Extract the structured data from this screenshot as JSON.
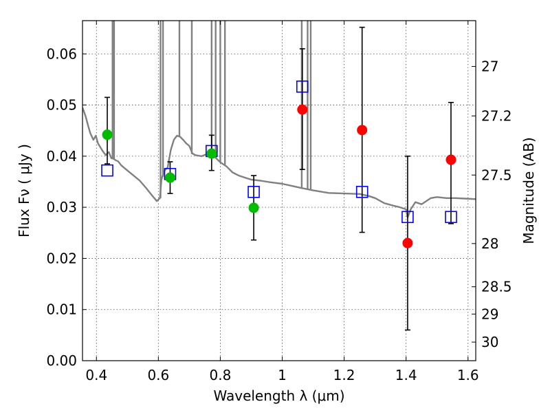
{
  "chart_data": {
    "type": "scatter",
    "xlabel": "Wavelength  λ (μm)",
    "ylabel": "Flux  Fν  ( μJy )",
    "y2label": "Magnitude (AB)",
    "xlim": [
      0.355,
      1.625
    ],
    "ylim": [
      0.0,
      0.0665
    ],
    "xticks": [
      0.4,
      0.6,
      0.8,
      1.0,
      1.2,
      1.4,
      1.6
    ],
    "xtick_labels": [
      "0.4",
      "0.6",
      "0.8",
      "1",
      "1.2",
      "1.4",
      "1.6"
    ],
    "yticks": [
      0.0,
      0.01,
      0.02,
      0.03,
      0.04,
      0.05,
      0.06
    ],
    "ytick_labels": [
      "0.00",
      "0.01",
      "0.02",
      "0.03",
      "0.04",
      "0.05",
      "0.06"
    ],
    "y2ticks": [
      {
        "label": "27",
        "mag": 27.0
      },
      {
        "label": "27.2",
        "mag": 27.2
      },
      {
        "label": "27.5",
        "mag": 27.5
      },
      {
        "label": "28",
        "mag": 28.0
      },
      {
        "label": "28.5",
        "mag": 28.5
      },
      {
        "label": "29",
        "mag": 29.0
      },
      {
        "label": "30",
        "mag": 30.0
      }
    ],
    "grid": true,
    "colors": {
      "spectrum": "#808080",
      "model_square": "#0000ff",
      "observed_green": "#00bb00",
      "observed_red": "#ff0000",
      "errorbar": "#000000"
    },
    "spectrum": [
      [
        0.355,
        0.0495
      ],
      [
        0.365,
        0.0478
      ],
      [
        0.372,
        0.0462
      ],
      [
        0.38,
        0.0445
      ],
      [
        0.39,
        0.0432
      ],
      [
        0.398,
        0.044
      ],
      [
        0.405,
        0.0425
      ],
      [
        0.412,
        0.0418
      ],
      [
        0.42,
        0.041
      ],
      [
        0.43,
        0.0402
      ],
      [
        0.44,
        0.0408
      ],
      [
        0.448,
        0.0396
      ],
      [
        0.455,
        0.0395
      ],
      [
        0.462,
        0.0392
      ],
      [
        0.47,
        0.039
      ],
      [
        0.48,
        0.0382
      ],
      [
        0.5,
        0.0372
      ],
      [
        0.52,
        0.0362
      ],
      [
        0.54,
        0.0352
      ],
      [
        0.56,
        0.0338
      ],
      [
        0.58,
        0.0323
      ],
      [
        0.595,
        0.0312
      ],
      [
        0.605,
        0.0318
      ],
      [
        0.61,
        0.0355
      ],
      [
        0.62,
        0.0372
      ],
      [
        0.63,
        0.0378
      ],
      [
        0.64,
        0.0412
      ],
      [
        0.65,
        0.0432
      ],
      [
        0.66,
        0.044
      ],
      [
        0.67,
        0.0438
      ],
      [
        0.68,
        0.0432
      ],
      [
        0.69,
        0.0425
      ],
      [
        0.7,
        0.042
      ],
      [
        0.71,
        0.0405
      ],
      [
        0.72,
        0.0402
      ],
      [
        0.74,
        0.04
      ],
      [
        0.76,
        0.0405
      ],
      [
        0.78,
        0.04
      ],
      [
        0.8,
        0.0388
      ],
      [
        0.82,
        0.038
      ],
      [
        0.84,
        0.0368
      ],
      [
        0.86,
        0.0362
      ],
      [
        0.88,
        0.0358
      ],
      [
        0.9,
        0.0354
      ],
      [
        0.93,
        0.0352
      ],
      [
        0.96,
        0.0349
      ],
      [
        1.0,
        0.0346
      ],
      [
        1.03,
        0.0342
      ],
      [
        1.06,
        0.0338
      ],
      [
        1.1,
        0.0333
      ],
      [
        1.15,
        0.0328
      ],
      [
        1.2,
        0.0327
      ],
      [
        1.25,
        0.0326
      ],
      [
        1.28,
        0.0322
      ],
      [
        1.3,
        0.0318
      ],
      [
        1.33,
        0.0308
      ],
      [
        1.36,
        0.0303
      ],
      [
        1.38,
        0.03
      ],
      [
        1.4,
        0.0296
      ],
      [
        1.405,
        0.028
      ],
      [
        1.415,
        0.0296
      ],
      [
        1.43,
        0.031
      ],
      [
        1.45,
        0.0306
      ],
      [
        1.48,
        0.0318
      ],
      [
        1.5,
        0.032
      ],
      [
        1.53,
        0.0318
      ],
      [
        1.56,
        0.0318
      ],
      [
        1.59,
        0.0317
      ],
      [
        1.625,
        0.0316
      ]
    ],
    "emission_lines": [
      {
        "x": 0.452,
        "base": 0.0396
      },
      {
        "x": 0.457,
        "base": 0.0394
      },
      {
        "x": 0.607,
        "base": 0.0318
      },
      {
        "x": 0.615,
        "base": 0.036
      },
      {
        "x": 0.668,
        "base": 0.0437
      },
      {
        "x": 0.708,
        "base": 0.0404
      },
      {
        "x": 0.772,
        "base": 0.0402
      },
      {
        "x": 0.785,
        "base": 0.0398
      },
      {
        "x": 0.8,
        "base": 0.0388
      },
      {
        "x": 0.815,
        "base": 0.0383
      },
      {
        "x": 1.063,
        "base": 0.0338
      },
      {
        "x": 1.082,
        "base": 0.0336
      },
      {
        "x": 1.092,
        "base": 0.0335
      }
    ],
    "model_photometry": [
      {
        "x": 0.435,
        "y": 0.0372
      },
      {
        "x": 0.638,
        "y": 0.0365
      },
      {
        "x": 0.772,
        "y": 0.041
      },
      {
        "x": 0.908,
        "y": 0.033
      },
      {
        "x": 1.065,
        "y": 0.0536
      },
      {
        "x": 1.258,
        "y": 0.033
      },
      {
        "x": 1.405,
        "y": 0.0281
      },
      {
        "x": 1.545,
        "y": 0.0281
      }
    ],
    "observed_green": [
      {
        "x": 0.435,
        "y": 0.0442,
        "ylo": 0.0385,
        "yhi": 0.0515
      },
      {
        "x": 0.638,
        "y": 0.0358,
        "ylo": 0.0327,
        "yhi": 0.0389
      },
      {
        "x": 0.772,
        "y": 0.0405,
        "ylo": 0.0372,
        "yhi": 0.0441
      },
      {
        "x": 0.908,
        "y": 0.0299,
        "ylo": 0.0236,
        "yhi": 0.0362
      }
    ],
    "observed_red": [
      {
        "x": 1.065,
        "y": 0.0491,
        "ylo": 0.0374,
        "yhi": 0.061
      },
      {
        "x": 1.258,
        "y": 0.0451,
        "ylo": 0.0251,
        "yhi": 0.0652
      },
      {
        "x": 1.405,
        "y": 0.023,
        "ylo": 0.006,
        "yhi": 0.04
      },
      {
        "x": 1.545,
        "y": 0.0393,
        "ylo": 0.0268,
        "yhi": 0.0505
      }
    ]
  }
}
